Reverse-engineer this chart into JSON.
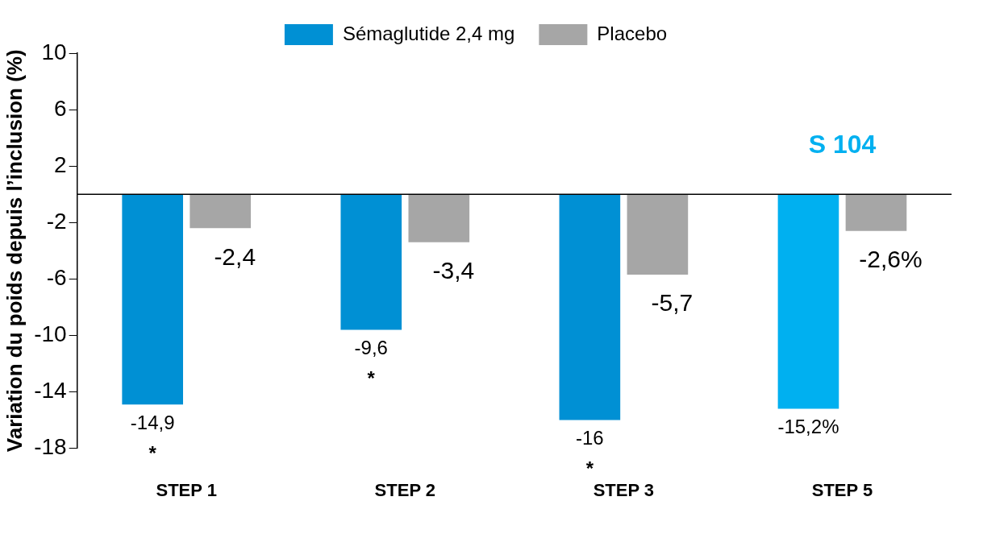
{
  "chart_data": {
    "type": "bar",
    "ylabel": "Variation du poids depuis l’inclusion (%)",
    "categories": [
      "STEP 1",
      "STEP 2",
      "STEP 3",
      "STEP 5"
    ],
    "series": [
      {
        "name": "Sémaglutide 2,4 mg",
        "color": "#0090d4",
        "colors": [
          "#0090d4",
          "#0090d4",
          "#0090d4",
          "#00b0f0"
        ],
        "values": [
          -14.9,
          -9.6,
          -16,
          -15.2
        ],
        "value_labels": [
          "-14,9",
          "-9,6",
          "-16",
          "-15,2%"
        ]
      },
      {
        "name": "Placebo",
        "color": "#a6a6a6",
        "values": [
          -2.4,
          -3.4,
          -5.7,
          -2.6
        ],
        "value_labels": [
          "-2,4",
          "-3,4",
          "-5,7",
          "-2,6%"
        ]
      }
    ],
    "ylim": [
      -18,
      10
    ],
    "yticks": [
      10,
      6,
      2,
      -2,
      -6,
      -10,
      -14,
      -18
    ],
    "grid": false,
    "legend": "top",
    "annotations": [
      {
        "text": "*",
        "x": "STEP 1",
        "y": -14.9
      },
      {
        "text": "*",
        "x": "STEP 2",
        "y": -9.6
      },
      {
        "text": "*",
        "x": "STEP 3",
        "y": -16
      },
      "S 104"
    ]
  }
}
